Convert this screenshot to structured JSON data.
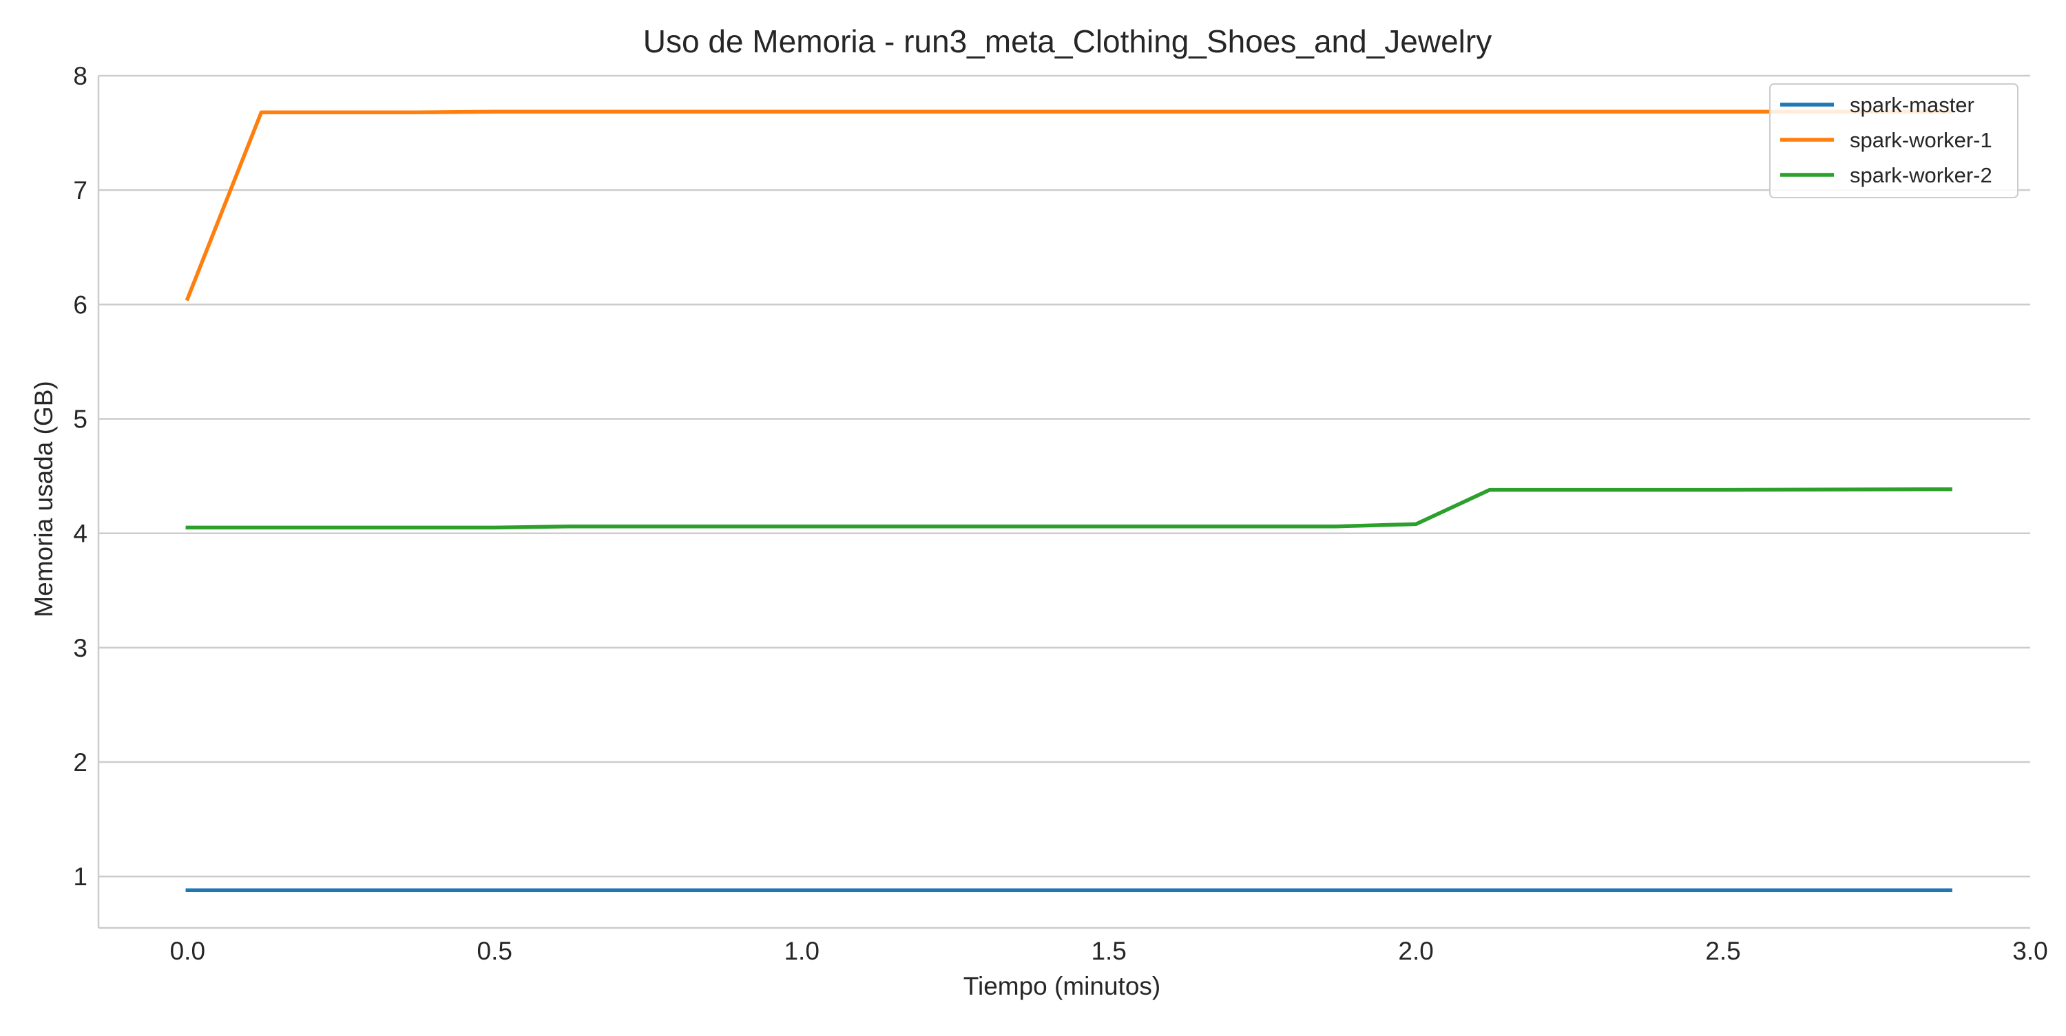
{
  "chart_data": {
    "type": "line",
    "title": "Uso de Memoria - run3_meta_Clothing_Shoes_and_Jewelry",
    "xlabel": "Tiempo (minutos)",
    "ylabel": "Memoria usada (GB)",
    "xlim": [
      -0.145,
      3.0
    ],
    "ylim": [
      0.55,
      8.0
    ],
    "x_ticks": [
      0.0,
      0.5,
      1.0,
      1.5,
      2.0,
      2.5,
      3.0
    ],
    "x_tick_labels": [
      "0.0",
      "0.5",
      "1.0",
      "1.5",
      "2.0",
      "2.5",
      "3.0"
    ],
    "y_ticks": [
      1,
      2,
      3,
      4,
      5,
      6,
      7,
      8
    ],
    "y_tick_labels": [
      "1",
      "2",
      "3",
      "4",
      "5",
      "6",
      "7",
      "8"
    ],
    "grid": "horizontal",
    "legend_position": "top-right",
    "series": [
      {
        "name": "spark-master",
        "color": "#1f77b4",
        "points": [
          [
            0.0,
            0.88
          ],
          [
            0.5,
            0.88
          ],
          [
            1.0,
            0.88
          ],
          [
            1.5,
            0.88
          ],
          [
            2.0,
            0.88
          ],
          [
            2.5,
            0.88
          ],
          [
            2.87,
            0.88
          ]
        ]
      },
      {
        "name": "spark-worker-1",
        "color": "#ff7f0e",
        "points": [
          [
            0.0,
            6.05
          ],
          [
            0.12,
            7.68
          ],
          [
            0.37,
            7.68
          ],
          [
            0.5,
            7.685
          ],
          [
            1.0,
            7.685
          ],
          [
            1.5,
            7.685
          ],
          [
            2.0,
            7.685
          ],
          [
            2.5,
            7.685
          ],
          [
            2.87,
            7.685
          ]
        ]
      },
      {
        "name": "spark-worker-2",
        "color": "#2ca02c",
        "points": [
          [
            0.0,
            4.05
          ],
          [
            0.5,
            4.05
          ],
          [
            0.62,
            4.06
          ],
          [
            1.0,
            4.06
          ],
          [
            1.5,
            4.06
          ],
          [
            1.87,
            4.06
          ],
          [
            2.0,
            4.08
          ],
          [
            2.12,
            4.38
          ],
          [
            2.5,
            4.38
          ],
          [
            2.87,
            4.385
          ]
        ]
      }
    ]
  }
}
